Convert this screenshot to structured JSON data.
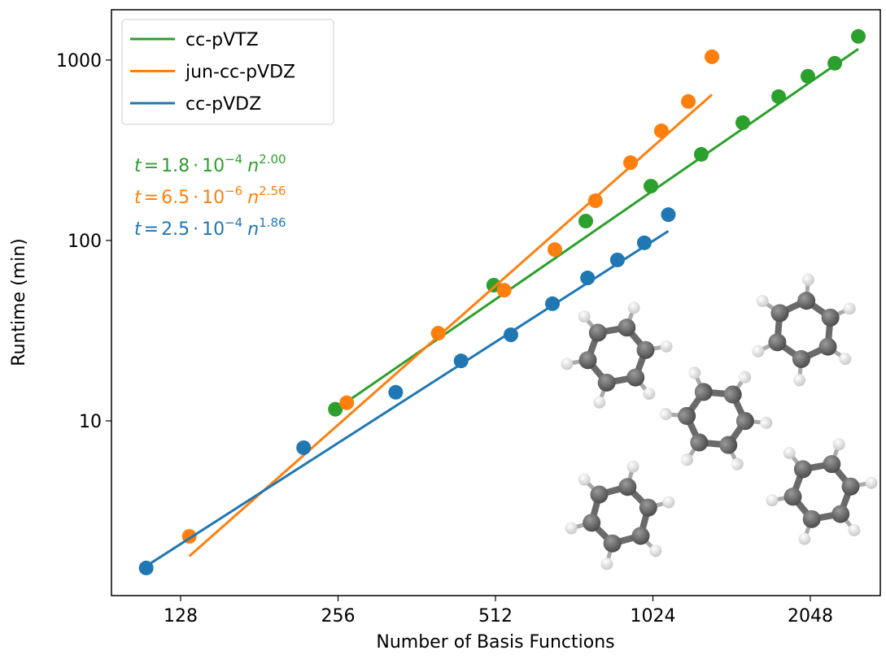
{
  "chart_data": {
    "type": "scatter",
    "xlabel": "Number of Basis Functions",
    "ylabel": "Runtime (min)",
    "xlog_base": 2,
    "ylog_base": 10,
    "xlim": [
      94.4,
      2787
    ],
    "ylim": [
      1.075,
      1900
    ],
    "xticks": [
      128,
      256,
      512,
      1024,
      2048
    ],
    "yticks": [
      10,
      100,
      1000
    ],
    "legend": "upper left",
    "equation": {
      "lhs": "t",
      "equals": "=",
      "times": "·",
      "base": 10,
      "var": "n"
    },
    "series": [
      {
        "name": "cc-pVTZ",
        "color": "#2ca02c",
        "x": [
          253,
          508,
          762,
          1015,
          1267,
          1521,
          1781,
          2026,
          2281,
          2530
        ],
        "values": [
          11.6,
          56.5,
          128,
          200,
          300,
          450,
          627,
          813,
          960,
          1352
        ],
        "fit": {
          "mantissa": 1.8,
          "exponent10": {
            "value": -4,
            "label": "−4"
          },
          "power": {
            "value": 2,
            "label": "2.00"
          }
        }
      },
      {
        "name": "jun-cc-pVDZ",
        "color": "#ff7f0e",
        "x": [
          133,
          266,
          398,
          532,
          665,
          795,
          928,
          1063,
          1197,
          1328
        ],
        "values": [
          2.29,
          12.6,
          30.6,
          53,
          89,
          166,
          270,
          405,
          589,
          1042
        ],
        "fit": {
          "mantissa": 6.5,
          "exponent10": {
            "value": -6,
            "label": "−6"
          },
          "power": 2.56
        }
      },
      {
        "name": "cc-pVDZ",
        "color": "#1f77b4",
        "x": [
          110,
          220,
          330,
          440,
          548,
          658,
          768,
          876,
          986,
          1096
        ],
        "values": [
          1.53,
          7.1,
          14.4,
          21.5,
          30,
          44.6,
          62,
          78,
          97,
          139
        ],
        "fit": {
          "mantissa": 2.5,
          "exponent10": {
            "value": -4,
            "label": "−4"
          },
          "power": 1.86
        }
      }
    ]
  }
}
